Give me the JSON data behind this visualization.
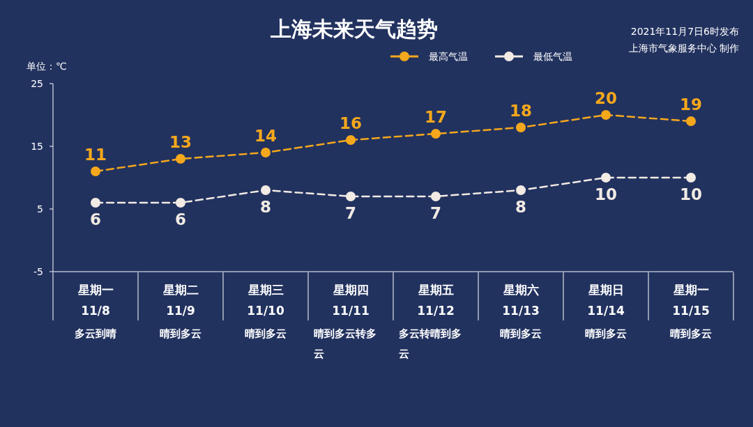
{
  "chart_data": {
    "type": "line",
    "title": "上海未来天气趋势",
    "ylabel": "单位：℃",
    "annotations": [
      "2021年11月7日6时发布",
      "上海市气象服务中心 制作"
    ],
    "categories": [
      "星期一\n11/8\n多云到晴",
      "星期二\n11/9\n晴到多云",
      "星期三\n11/10\n晴到多云",
      "星期四\n11/11\n晴到多云转多云",
      "星期五\n11/12\n多云转晴到多云",
      "星期六\n11/13\n晴到多云",
      "星期日\n11/14\n晴到多云",
      "星期一\n11/15\n晴到多云"
    ],
    "series": [
      {
        "name": "最高气温",
        "color": "#f5a81c",
        "values": [
          11,
          13,
          14,
          16,
          17,
          18,
          20,
          19
        ]
      },
      {
        "name": "最低气温",
        "color": "#f2ebe4",
        "values": [
          6,
          6,
          8,
          7,
          7,
          8,
          10,
          10
        ]
      }
    ],
    "ylim": [
      -5,
      25
    ],
    "yticks": [
      -5,
      5,
      15,
      25
    ],
    "grid": false,
    "legend": "top right",
    "marker": "circle",
    "line_style": "dashed",
    "data_labels": true
  }
}
